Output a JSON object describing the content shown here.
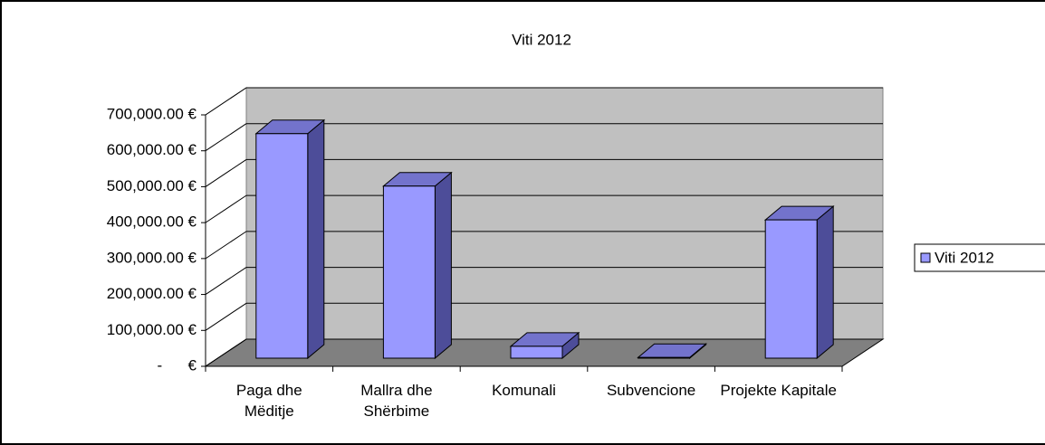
{
  "chart_data": {
    "type": "bar3d",
    "title": "Viti 2012",
    "categories": [
      "Paga dhe Mëditje",
      "Mallra dhe Shërbime",
      "Komunali",
      "Subvencione",
      "Projekte Kapitale"
    ],
    "series": [
      {
        "name": "Viti 2012",
        "color": "#9999ff",
        "values": [
          625000,
          479000,
          33000,
          2000,
          385000
        ]
      }
    ],
    "ylim": [
      0,
      700000
    ],
    "yticks": [
      {
        "value": 0,
        "label": "-      €"
      },
      {
        "value": 100000,
        "label": "100,000.00 €"
      },
      {
        "value": 200000,
        "label": "200,000.00 €"
      },
      {
        "value": 300000,
        "label": "300,000.00 €"
      },
      {
        "value": 400000,
        "label": "400,000.00 €"
      },
      {
        "value": 500000,
        "label": "500,000.00 €"
      },
      {
        "value": 600000,
        "label": "600,000.00 €"
      },
      {
        "value": 700000,
        "label": "700,000.00 €"
      }
    ],
    "grid": true,
    "legend": "right"
  }
}
